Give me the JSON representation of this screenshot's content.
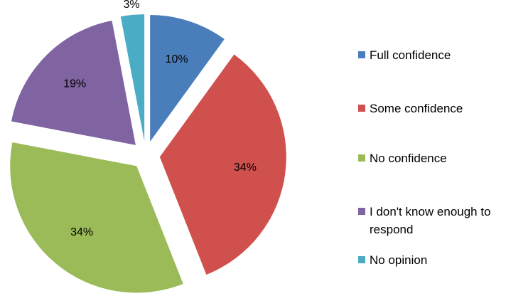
{
  "chart_data": {
    "type": "pie",
    "categories": [
      "Full confidence",
      "Some confidence",
      "No confidence",
      "I don't know enough to respond",
      "No opinion"
    ],
    "values": [
      10,
      34,
      34,
      19,
      3
    ],
    "value_labels": [
      "10%",
      "34%",
      "34%",
      "19%",
      "3%"
    ],
    "colors": [
      "#4a7ebb",
      "#d0504d",
      "#9bbb59",
      "#8064a2",
      "#4bacc6"
    ],
    "legend": "right"
  }
}
